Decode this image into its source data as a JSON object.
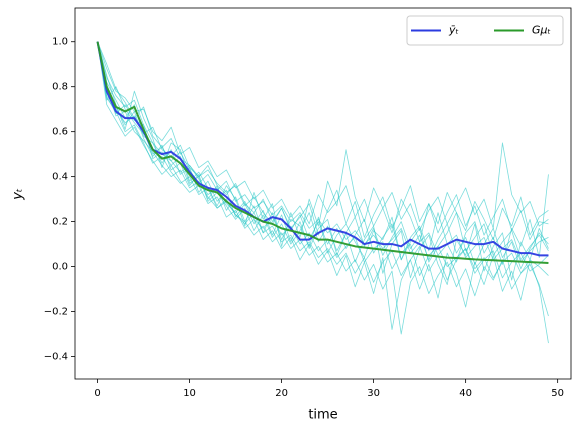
{
  "chart_data": {
    "type": "line",
    "xlabel": "time",
    "ylabel": "yₜ",
    "x": [
      0,
      1,
      2,
      3,
      4,
      5,
      6,
      7,
      8,
      9,
      10,
      11,
      12,
      13,
      14,
      15,
      16,
      17,
      18,
      19,
      20,
      21,
      22,
      23,
      24,
      25,
      26,
      27,
      28,
      29,
      30,
      31,
      32,
      33,
      34,
      35,
      36,
      37,
      38,
      39,
      40,
      41,
      42,
      43,
      44,
      45,
      46,
      47,
      48,
      49
    ],
    "xlim": [
      -2.45,
      51.45
    ],
    "xticks": [
      0,
      10,
      20,
      30,
      40,
      50
    ],
    "ylim": [
      -0.5,
      1.15
    ],
    "yticks": [
      {
        "value": -0.4,
        "label": "−0.4"
      },
      {
        "value": -0.2,
        "label": "−0.2"
      },
      {
        "value": 0,
        "label": "0.0"
      },
      {
        "value": 0.2,
        "label": "0.2"
      },
      {
        "value": 0.4,
        "label": "0.4"
      },
      {
        "value": 0.6,
        "label": "0.6"
      },
      {
        "value": 0.8,
        "label": "0.8"
      },
      {
        "value": 1,
        "label": "1.0"
      }
    ],
    "legend": "upper right",
    "series": [
      {
        "color": "#22c4c4",
        "values": [
          1.0,
          0.82,
          0.74,
          0.66,
          0.72,
          0.58,
          0.55,
          0.46,
          0.52,
          0.41,
          0.44,
          0.33,
          0.38,
          0.29,
          0.34,
          0.22,
          0.28,
          0.19,
          0.25,
          0.14,
          0.23,
          0.11,
          0.2,
          0.08,
          0.17,
          0.21,
          0.05,
          0.15,
          0.02,
          0.12,
          0.18,
          -0.03,
          0.1,
          0.16,
          -0.05,
          0.08,
          0.14,
          0.01,
          -0.08,
          0.12,
          0.05,
          0.19,
          -0.02,
          0.09,
          0.15,
          -0.06,
          0.11,
          0.03,
          0.17,
          0.08
        ]
      },
      {
        "color": "#22c4c4",
        "values": [
          1.0,
          0.76,
          0.68,
          0.72,
          0.65,
          0.63,
          0.48,
          0.51,
          0.45,
          0.49,
          0.37,
          0.4,
          0.3,
          0.36,
          0.25,
          0.31,
          0.2,
          0.27,
          0.15,
          0.24,
          0.12,
          0.21,
          0.18,
          0.09,
          0.22,
          0.06,
          0.14,
          0.19,
          0.11,
          0.04,
          0.16,
          0.12,
          0.22,
          0.03,
          0.13,
          0.18,
          0.07,
          0.24,
          0.1,
          0.02,
          0.15,
          0.2,
          0.06,
          0.13,
          0.01,
          0.17,
          0.09,
          0.21,
          0.04,
          0.41
        ]
      },
      {
        "color": "#22c4c4",
        "values": [
          1.0,
          0.85,
          0.72,
          0.61,
          0.78,
          0.66,
          0.57,
          0.44,
          0.55,
          0.52,
          0.38,
          0.42,
          0.35,
          0.27,
          0.36,
          0.3,
          0.18,
          0.33,
          0.21,
          0.28,
          0.09,
          0.24,
          0.13,
          0.3,
          0.18,
          0.38,
          0.27,
          0.52,
          0.31,
          0.2,
          0.35,
          0.26,
          0.15,
          0.3,
          0.22,
          0.11,
          0.28,
          0.19,
          0.33,
          0.24,
          0.16,
          0.29,
          0.21,
          0.12,
          0.26,
          0.18,
          0.31,
          0.14,
          0.22,
          0.25
        ]
      },
      {
        "color": "#22c4c4",
        "values": [
          1.0,
          0.72,
          0.65,
          0.58,
          0.62,
          0.54,
          0.47,
          0.41,
          0.45,
          0.38,
          0.33,
          0.36,
          0.28,
          0.31,
          0.22,
          0.25,
          0.17,
          0.21,
          0.12,
          0.16,
          0.08,
          0.13,
          0.03,
          0.1,
          0.01,
          0.07,
          -0.04,
          0.05,
          -0.09,
          0.02,
          -0.12,
          0.04,
          -0.28,
          -0.06,
          0.03,
          -0.1,
          0.01,
          -0.14,
          0.06,
          -0.03,
          -0.18,
          0.02,
          -0.08,
          0.05,
          -0.11,
          -0.02,
          -0.15,
          0.03,
          -0.09,
          -0.34
        ]
      },
      {
        "color": "#22c4c4",
        "values": [
          1.0,
          0.88,
          0.78,
          0.75,
          0.69,
          0.7,
          0.6,
          0.56,
          0.62,
          0.5,
          0.53,
          0.44,
          0.47,
          0.4,
          0.43,
          0.35,
          0.38,
          0.3,
          0.34,
          0.26,
          0.3,
          0.22,
          0.27,
          0.19,
          0.32,
          0.24,
          0.29,
          0.36,
          0.22,
          0.3,
          0.18,
          0.26,
          0.33,
          0.21,
          0.28,
          0.16,
          0.25,
          0.31,
          0.19,
          0.27,
          0.35,
          0.23,
          0.3,
          0.17,
          0.55,
          0.32,
          0.24,
          0.29,
          0.18,
          0.21
        ]
      },
      {
        "color": "#22c4c4",
        "values": [
          1.0,
          0.79,
          0.7,
          0.64,
          0.67,
          0.6,
          0.5,
          0.53,
          0.47,
          0.42,
          0.45,
          0.39,
          0.32,
          0.35,
          0.28,
          0.24,
          0.29,
          0.21,
          0.17,
          0.22,
          0.14,
          0.18,
          0.1,
          0.15,
          0.07,
          0.12,
          0.04,
          0.09,
          0.13,
          0.02,
          0.08,
          0.11,
          -0.01,
          0.06,
          0.1,
          -0.04,
          0.05,
          0.09,
          0.0,
          0.04,
          0.08,
          -0.03,
          0.03,
          0.07,
          -0.05,
          0.02,
          0.06,
          -0.02,
          0.01,
          0.05
        ]
      },
      {
        "color": "#22c4c4",
        "values": [
          1.0,
          0.74,
          0.8,
          0.7,
          0.64,
          0.59,
          0.62,
          0.52,
          0.49,
          0.54,
          0.44,
          0.4,
          0.43,
          0.37,
          0.33,
          0.36,
          0.27,
          0.31,
          0.24,
          0.19,
          0.26,
          0.16,
          0.23,
          0.12,
          0.2,
          0.1,
          0.17,
          0.08,
          0.14,
          0.21,
          0.06,
          0.13,
          0.19,
          0.03,
          0.11,
          0.17,
          0.02,
          0.09,
          0.15,
          0.24,
          0.07,
          0.13,
          0.19,
          0.05,
          0.11,
          0.16,
          0.03,
          0.09,
          0.14,
          0.07
        ]
      },
      {
        "color": "#22c4c4",
        "values": [
          1.0,
          0.81,
          0.67,
          0.69,
          0.6,
          0.56,
          0.51,
          0.45,
          0.4,
          0.43,
          0.35,
          0.38,
          0.31,
          0.26,
          0.3,
          0.23,
          0.2,
          0.14,
          0.18,
          0.11,
          0.15,
          0.08,
          0.12,
          0.05,
          0.09,
          0.02,
          0.06,
          -0.02,
          0.03,
          -0.06,
          0.01,
          -0.1,
          -0.02,
          -0.3,
          -0.07,
          0.0,
          -0.12,
          -0.04,
          0.02,
          -0.09,
          -0.01,
          -0.13,
          0.0,
          -0.06,
          0.03,
          -0.1,
          -0.03,
          0.01,
          -0.08,
          -0.22
        ]
      },
      {
        "color": "#22c4c4",
        "values": [
          1.0,
          0.84,
          0.76,
          0.71,
          0.74,
          0.63,
          0.55,
          0.5,
          0.47,
          0.51,
          0.43,
          0.37,
          0.41,
          0.34,
          0.38,
          0.29,
          0.32,
          0.26,
          0.29,
          0.23,
          0.27,
          0.2,
          0.24,
          0.17,
          0.21,
          0.15,
          0.19,
          0.12,
          0.16,
          0.1,
          0.14,
          0.08,
          0.12,
          0.17,
          0.06,
          0.11,
          0.15,
          0.05,
          0.1,
          0.14,
          0.04,
          0.09,
          0.13,
          0.03,
          0.08,
          0.12,
          0.02,
          0.07,
          0.11,
          0.13
        ]
      },
      {
        "color": "#22c4c4",
        "values": [
          1.0,
          0.77,
          0.71,
          0.63,
          0.69,
          0.57,
          0.49,
          0.54,
          0.43,
          0.46,
          0.36,
          0.41,
          0.29,
          0.33,
          0.27,
          0.21,
          0.26,
          0.16,
          0.23,
          0.13,
          0.19,
          0.1,
          0.16,
          0.24,
          0.11,
          0.18,
          0.07,
          0.15,
          0.22,
          0.09,
          0.17,
          0.05,
          0.13,
          0.2,
          0.08,
          0.14,
          0.03,
          0.12,
          0.19,
          0.06,
          0.13,
          0.01,
          0.1,
          0.17,
          0.04,
          0.11,
          -0.01,
          0.08,
          0.15,
          0.1
        ]
      },
      {
        "color": "#22c4c4",
        "values": [
          1.0,
          0.9,
          0.79,
          0.73,
          0.66,
          0.71,
          0.58,
          0.53,
          0.57,
          0.48,
          0.45,
          0.4,
          0.45,
          0.36,
          0.32,
          0.37,
          0.28,
          0.24,
          0.3,
          0.2,
          0.26,
          0.17,
          0.22,
          0.28,
          0.14,
          0.25,
          0.34,
          0.19,
          0.29,
          0.13,
          0.23,
          0.31,
          0.17,
          0.26,
          0.36,
          0.2,
          0.28,
          0.15,
          0.24,
          0.32,
          0.18,
          0.27,
          0.14,
          0.22,
          0.3,
          0.16,
          0.25,
          0.12,
          0.2,
          0.19
        ]
      },
      {
        "color": "#22c4c4",
        "values": [
          1.0,
          0.75,
          0.69,
          0.6,
          0.63,
          0.55,
          0.46,
          0.49,
          0.42,
          0.37,
          0.4,
          0.32,
          0.35,
          0.26,
          0.29,
          0.23,
          0.19,
          0.24,
          0.15,
          0.18,
          0.11,
          0.14,
          0.07,
          0.11,
          0.04,
          0.08,
          0.01,
          0.06,
          -0.03,
          0.04,
          -0.07,
          0.02,
          0.07,
          -0.04,
          0.03,
          0.09,
          -0.02,
          0.05,
          -0.06,
          0.03,
          0.08,
          -0.01,
          0.04,
          -0.05,
          0.02,
          0.06,
          -0.03,
          0.03,
          0.0,
          -0.04
        ]
      },
      {
        "name": "ȳₜ",
        "color": "#2b3be0",
        "width": 2,
        "values": [
          1.0,
          0.78,
          0.69,
          0.66,
          0.66,
          0.6,
          0.52,
          0.5,
          0.51,
          0.48,
          0.42,
          0.37,
          0.35,
          0.34,
          0.31,
          0.27,
          0.25,
          0.22,
          0.2,
          0.22,
          0.21,
          0.17,
          0.12,
          0.12,
          0.15,
          0.17,
          0.16,
          0.15,
          0.13,
          0.1,
          0.11,
          0.1,
          0.1,
          0.09,
          0.12,
          0.1,
          0.08,
          0.08,
          0.1,
          0.12,
          0.11,
          0.1,
          0.1,
          0.11,
          0.08,
          0.07,
          0.06,
          0.06,
          0.05,
          0.05
        ]
      },
      {
        "name": "Gμₜ",
        "color": "#2a9a2a",
        "width": 2,
        "values": [
          1.0,
          0.8,
          0.71,
          0.69,
          0.71,
          0.61,
          0.52,
          0.48,
          0.49,
          0.46,
          0.41,
          0.36,
          0.34,
          0.33,
          0.29,
          0.26,
          0.24,
          0.22,
          0.2,
          0.19,
          0.17,
          0.16,
          0.15,
          0.14,
          0.12,
          0.12,
          0.11,
          0.1,
          0.09,
          0.085,
          0.08,
          0.075,
          0.07,
          0.065,
          0.06,
          0.055,
          0.05,
          0.045,
          0.04,
          0.038,
          0.035,
          0.032,
          0.03,
          0.028,
          0.026,
          0.024,
          0.022,
          0.02,
          0.018,
          0.016
        ]
      }
    ]
  }
}
